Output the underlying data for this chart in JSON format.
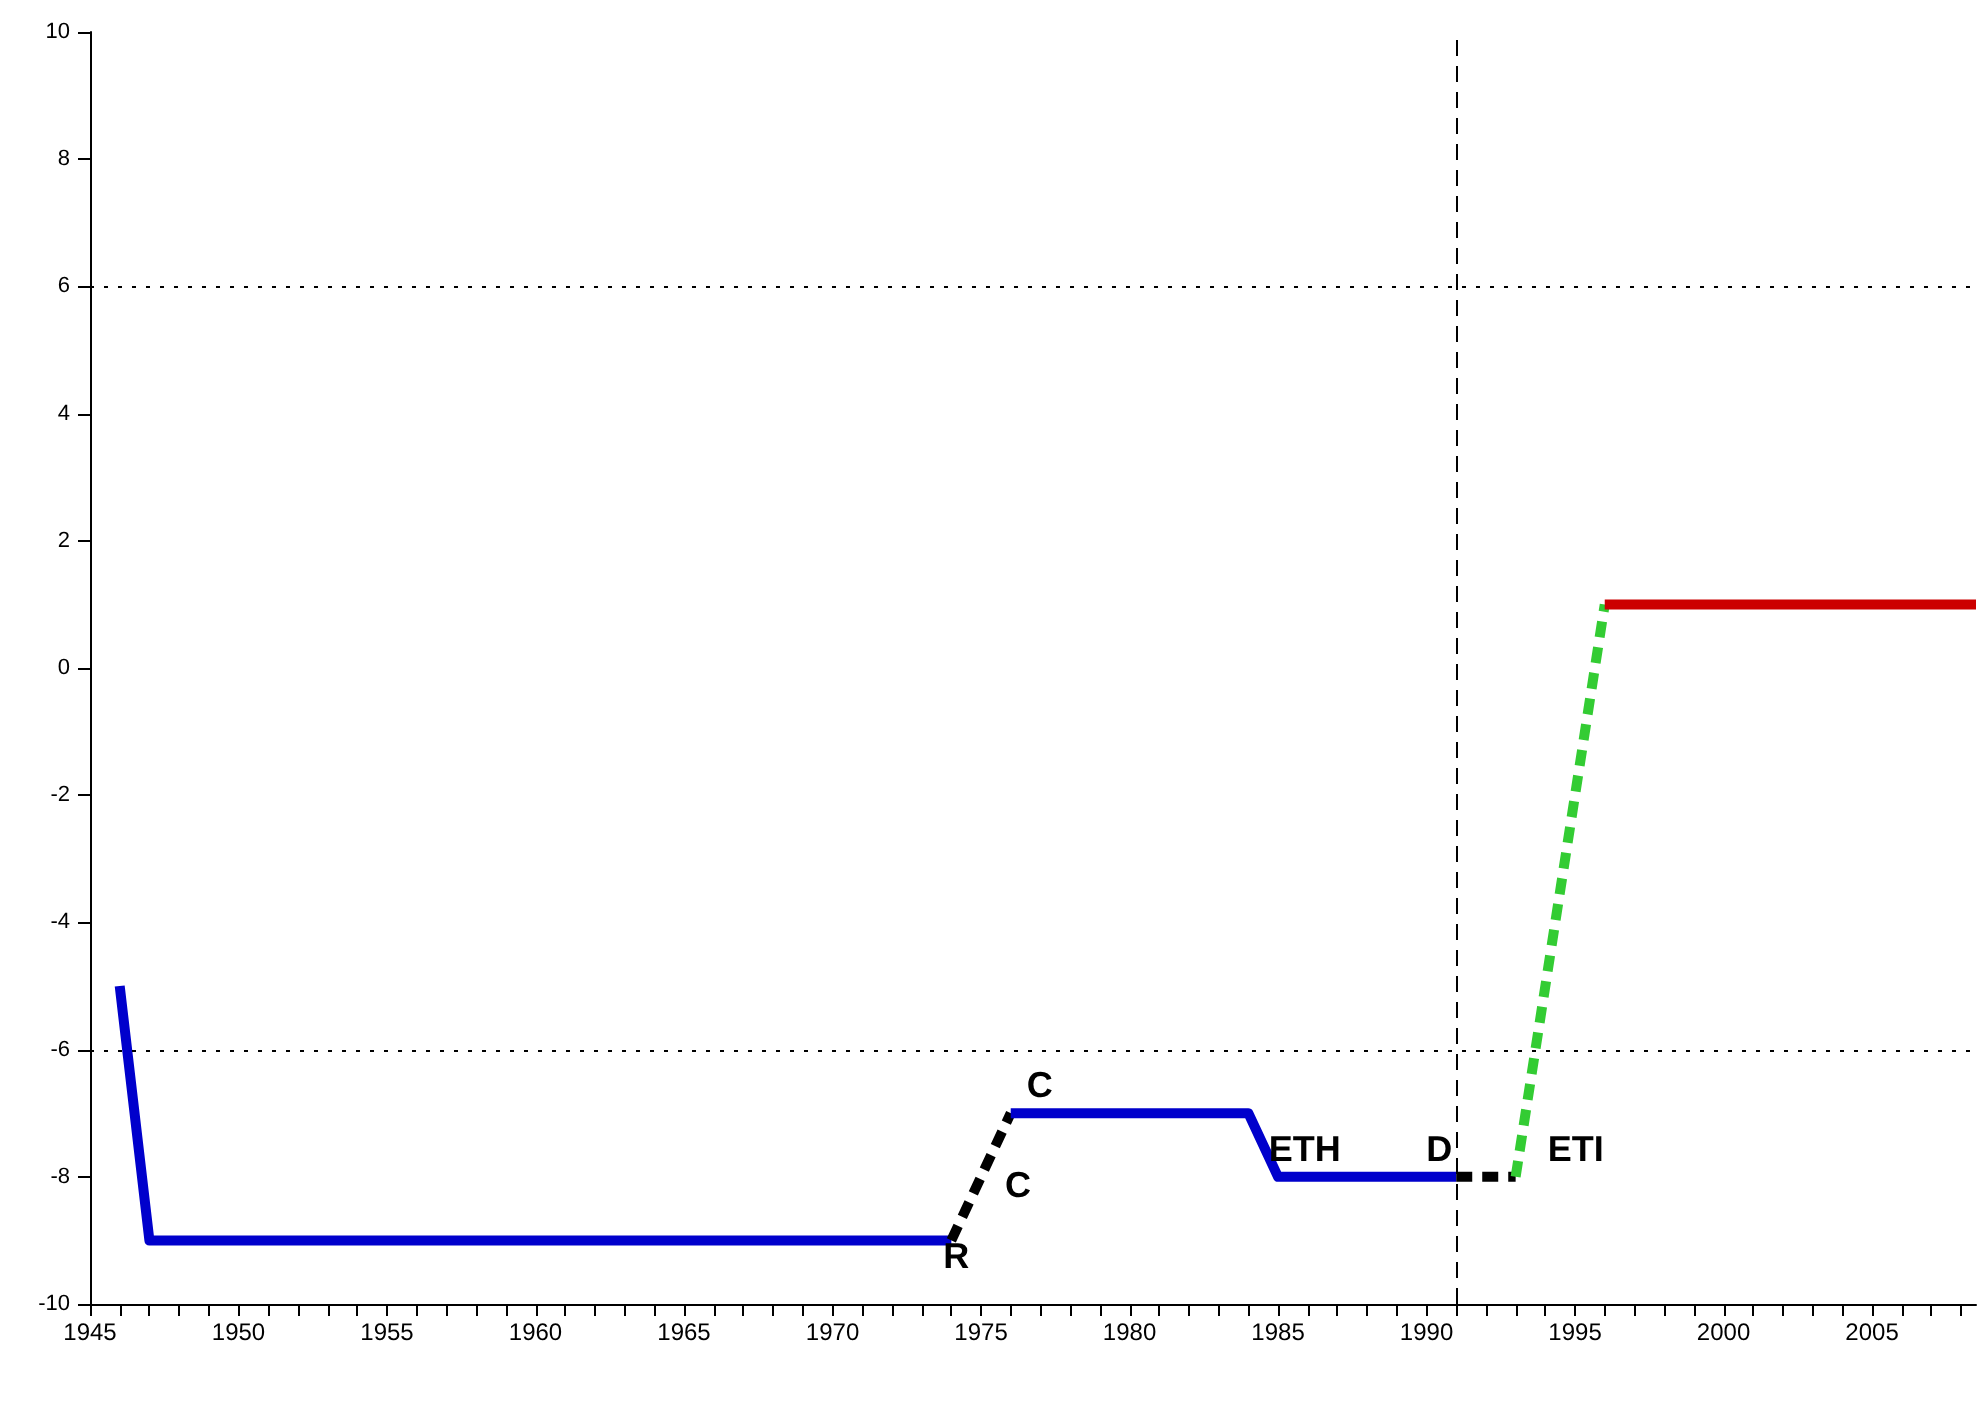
{
  "chart_data": {
    "type": "line",
    "xlim": [
      1945,
      2008.5
    ],
    "ylim": [
      -10,
      10
    ],
    "xticks": [
      1945,
      {
        "value": 1946,
        "label": null
      },
      {
        "value": 1947,
        "label": null
      },
      {
        "value": 1948,
        "label": null
      },
      {
        "value": 1949,
        "label": null
      },
      1950,
      {
        "value": 1951,
        "label": null
      },
      {
        "value": 1952,
        "label": null
      },
      {
        "value": 1953,
        "label": null
      },
      {
        "value": 1954,
        "label": null
      },
      1955,
      {
        "value": 1956,
        "label": null
      },
      {
        "value": 1957,
        "label": null
      },
      {
        "value": 1958,
        "label": null
      },
      {
        "value": 1959,
        "label": null
      },
      1960,
      {
        "value": 1961,
        "label": null
      },
      {
        "value": 1962,
        "label": null
      },
      {
        "value": 1963,
        "label": null
      },
      {
        "value": 1964,
        "label": null
      },
      1965,
      {
        "value": 1966,
        "label": null
      },
      {
        "value": 1967,
        "label": null
      },
      {
        "value": 1968,
        "label": null
      },
      {
        "value": 1969,
        "label": null
      },
      1970,
      {
        "value": 1971,
        "label": null
      },
      {
        "value": 1972,
        "label": null
      },
      {
        "value": 1973,
        "label": null
      },
      {
        "value": 1974,
        "label": null
      },
      1975,
      {
        "value": 1976,
        "label": null
      },
      {
        "value": 1977,
        "label": null
      },
      {
        "value": 1978,
        "label": null
      },
      {
        "value": 1979,
        "label": null
      },
      1980,
      {
        "value": 1981,
        "label": null
      },
      {
        "value": 1982,
        "label": null
      },
      {
        "value": 1983,
        "label": null
      },
      {
        "value": 1984,
        "label": null
      },
      1985,
      {
        "value": 1986,
        "label": null
      },
      {
        "value": 1987,
        "label": null
      },
      {
        "value": 1988,
        "label": null
      },
      {
        "value": 1989,
        "label": null
      },
      1990,
      {
        "value": 1991,
        "label": null
      },
      {
        "value": 1992,
        "label": null
      },
      {
        "value": 1993,
        "label": null
      },
      {
        "value": 1994,
        "label": null
      },
      1995,
      {
        "value": 1996,
        "label": null
      },
      {
        "value": 1997,
        "label": null
      },
      {
        "value": 1998,
        "label": null
      },
      {
        "value": 1999,
        "label": null
      },
      2000,
      {
        "value": 2001,
        "label": null
      },
      {
        "value": 2002,
        "label": null
      },
      {
        "value": 2003,
        "label": null
      },
      {
        "value": 2004,
        "label": null
      },
      2005,
      {
        "value": 2006,
        "label": null
      },
      {
        "value": 2007,
        "label": null
      },
      {
        "value": 2008,
        "label": null
      }
    ],
    "yticks": [
      -10,
      -8,
      -6,
      -4,
      -2,
      0,
      2,
      4,
      6,
      8,
      10
    ],
    "grid": false,
    "marker": "none",
    "series": [
      {
        "color": "#0000cc",
        "line_style": "solid",
        "x": [
          1946,
          1947,
          1974
        ],
        "values": [
          -5,
          -9,
          -9
        ]
      },
      {
        "color": "#000000",
        "line_style": "dashed",
        "x": [
          1974,
          1976
        ],
        "values": [
          -9,
          -7
        ]
      },
      {
        "color": "#0000cc",
        "line_style": "solid",
        "x": [
          1976,
          1984,
          1985,
          1991
        ],
        "values": [
          -7,
          -7,
          -8,
          -8
        ]
      },
      {
        "color": "#000000",
        "line_style": "dashed",
        "x": [
          1991,
          1993
        ],
        "values": [
          -8,
          -8
        ]
      },
      {
        "color": "#33cc33",
        "line_style": "dashed",
        "x": [
          1993,
          1996
        ],
        "values": [
          -8,
          1
        ]
      },
      {
        "color": "#cc0000",
        "line_style": "solid",
        "x": [
          1996,
          2008.5
        ],
        "values": [
          1,
          1
        ]
      }
    ],
    "ref_lines": [
      {
        "axis": "y",
        "value": 6,
        "line_style": "dotted",
        "color": "#000000"
      },
      {
        "axis": "y",
        "value": -6,
        "line_style": "dotted",
        "color": "#000000"
      },
      {
        "axis": "x",
        "value": 1991,
        "line_style": "dashed",
        "color": "#000000"
      }
    ],
    "annotations": [
      {
        "text": "R",
        "x": 1974,
        "y": -9
      },
      {
        "text": "C",
        "x": 1975,
        "y": -8
      },
      {
        "text": "C",
        "x": 1976,
        "y": -7
      },
      {
        "text": "ETH",
        "x": 1989,
        "y": -8
      },
      {
        "text": "D",
        "x": 1991,
        "y": -8
      },
      {
        "text": "ETI",
        "x": 1993,
        "y": -8
      }
    ]
  }
}
